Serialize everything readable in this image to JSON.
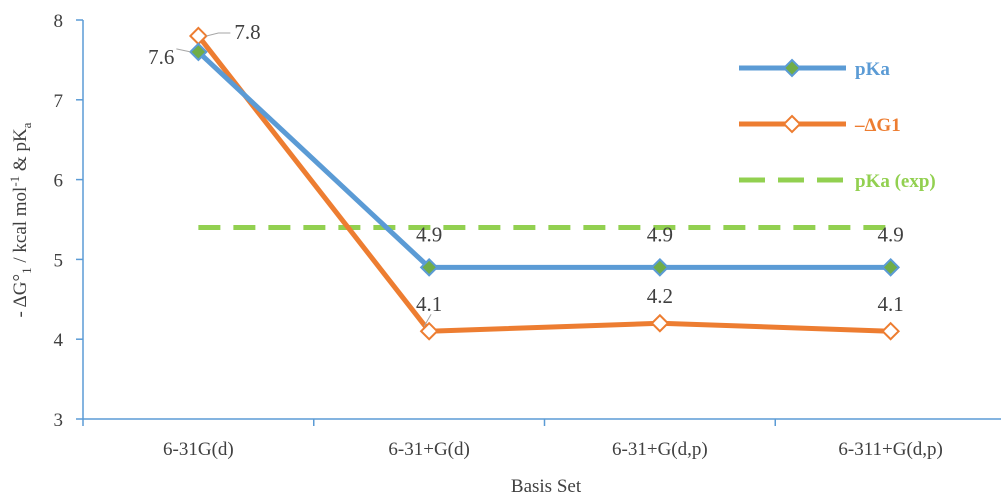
{
  "chart_data": {
    "type": "line",
    "categories": [
      "6-31G(d)",
      "6-31+G(d)",
      "6-31+G(d,p)",
      "6-311+G(d,p)"
    ],
    "series": [
      {
        "name": "pKa",
        "values": [
          7.6,
          4.9,
          4.9,
          4.9
        ],
        "color": "#5b9bd5",
        "marker_fill": "#70ad47",
        "marker_stroke": "#5b9bd5",
        "line_style": "solid",
        "marker": "diamond"
      },
      {
        "name": "–ΔG1",
        "values": [
          7.8,
          4.1,
          4.2,
          4.1
        ],
        "color": "#ed7d31",
        "marker_fill": "#ffffff",
        "marker_stroke": "#ed7d31",
        "line_style": "solid",
        "marker": "diamond"
      },
      {
        "name": "pKa (exp)",
        "values": [
          5.4,
          5.4,
          5.4,
          5.4
        ],
        "color": "#92d050",
        "line_style": "dashed",
        "marker": "none"
      }
    ],
    "data_labels": {
      "pKa": [
        "7.6",
        "4.9",
        "4.9",
        "4.9"
      ],
      "–ΔG1": [
        "7.8",
        "4.1",
        "4.2",
        "4.1"
      ]
    },
    "y_ticks": [
      "3",
      "4",
      "5",
      "6",
      "7",
      "8"
    ],
    "ylim": [
      3,
      8
    ],
    "xlabel": "Basis Set",
    "ylabel_parts": {
      "a": "- ΔG°",
      "b": "1",
      "c": " / kcal mol",
      "d": "-1",
      "e": " & pK",
      "f": "a"
    },
    "grid": false,
    "legend_position": "top-right",
    "axis_color": "#5b9bd5"
  }
}
